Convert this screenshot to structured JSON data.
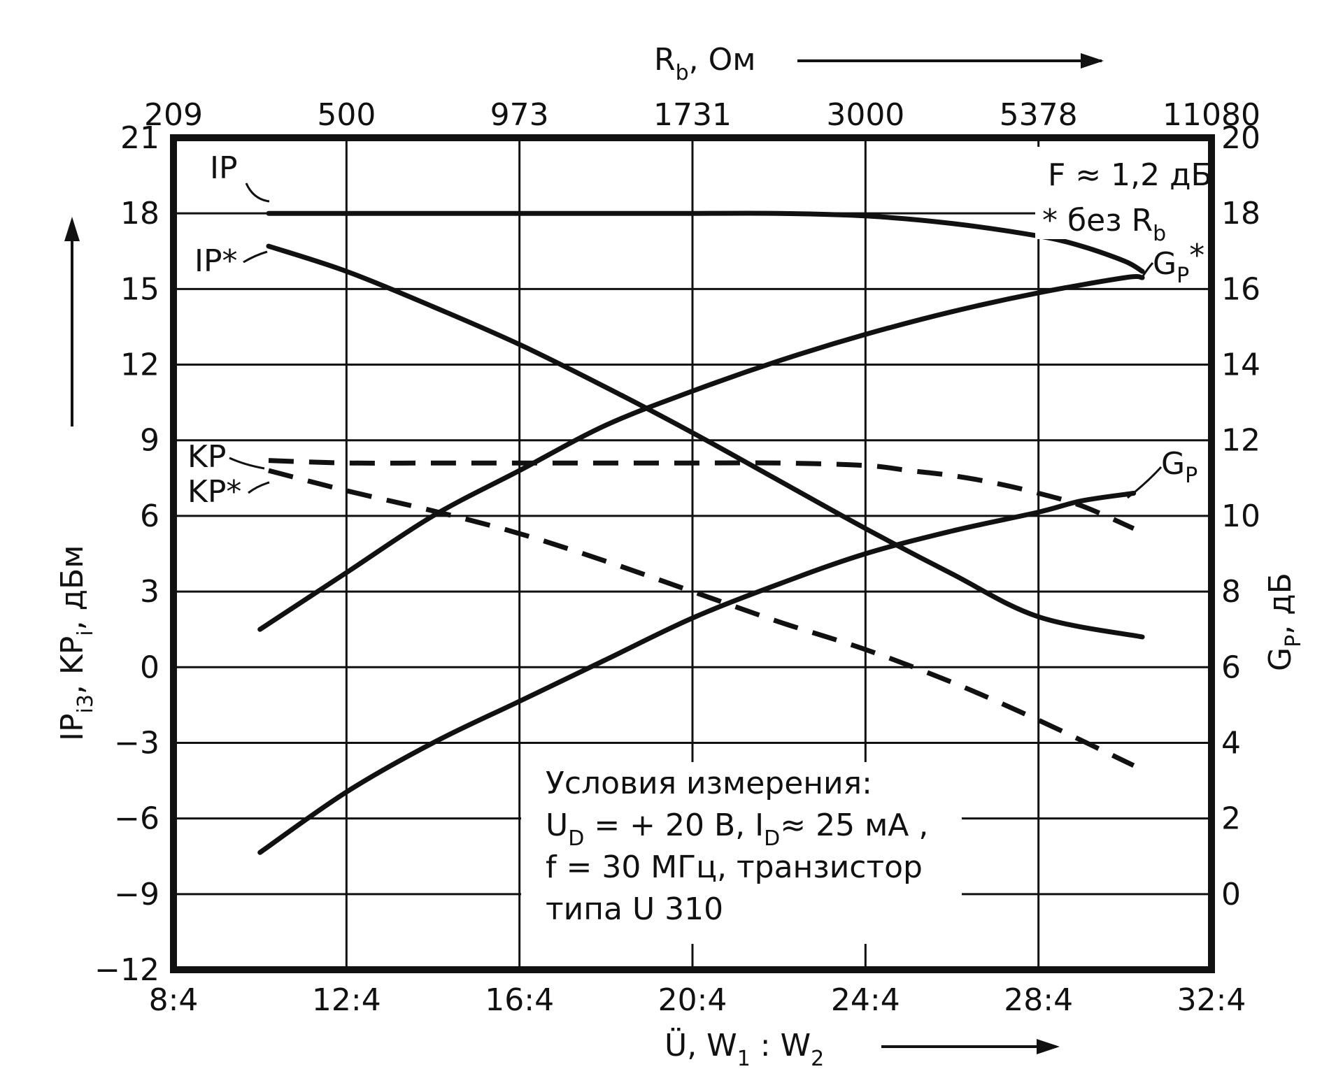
{
  "chart_data": {
    "type": "line",
    "x_axis": {
      "label": "Ü, W",
      "label_sub1": "1",
      "label_mid": " : W",
      "label_sub2": "2",
      "range": [
        8,
        32
      ],
      "ticks": [
        8,
        12,
        16,
        20,
        24,
        28,
        32
      ],
      "tick_labels": [
        "8:4",
        "12:4",
        "16:4",
        "20:4",
        "24:4",
        "28:4",
        "32:4"
      ]
    },
    "top_axis": {
      "label": "R",
      "label_sub": "b",
      "label_rest": ", Ом",
      "tick_labels": [
        "209",
        "500",
        "973",
        "1731",
        "3000",
        "5378",
        "11080"
      ]
    },
    "y_left": {
      "label": "IP",
      "label_sub1": "i3",
      "label_mid": ", KP",
      "label_sub2": "i",
      "label_rest": ", дБм",
      "range": [
        -12,
        21
      ],
      "ticks": [
        21,
        18,
        15,
        12,
        9,
        6,
        3,
        0,
        -3,
        -6,
        -9,
        -12
      ],
      "tick_labels": [
        "21",
        "18",
        "15",
        "12",
        "9",
        "6",
        "3",
        "0",
        "−3",
        "−6",
        "−9",
        "−12"
      ]
    },
    "y_right": {
      "label": "G",
      "label_sub": "P",
      "label_rest": ", дБ",
      "range": [
        -2,
        20
      ],
      "ticks": [
        20,
        18,
        16,
        14,
        12,
        10,
        8,
        6,
        4,
        2,
        0
      ],
      "tick_labels": [
        "20",
        "18",
        "16",
        "14",
        "12",
        "10",
        "8",
        "6",
        "4",
        "2",
        "0"
      ]
    },
    "series": [
      {
        "name": "IP",
        "axis": "left",
        "style": "solid",
        "x": [
          10.2,
          12,
          14,
          16,
          18,
          20,
          22,
          24,
          26,
          28,
          29,
          30,
          30.4
        ],
        "y": [
          18,
          18,
          18,
          18,
          18,
          18,
          18,
          17.9,
          17.6,
          17.1,
          16.7,
          16.1,
          15.7
        ]
      },
      {
        "name": "IP*",
        "axis": "left",
        "style": "solid",
        "x": [
          10.2,
          12,
          14,
          16,
          18,
          20,
          22,
          24,
          26,
          28,
          30.4
        ],
        "y": [
          16.7,
          15.7,
          14.3,
          12.8,
          11.1,
          9.3,
          7.4,
          5.5,
          3.7,
          2.0,
          1.2
        ]
      },
      {
        "name": "G",
        "name_sub": "P",
        "name_sup": "*",
        "axis": "right",
        "style": "solid",
        "x": [
          10,
          12,
          14,
          16,
          18,
          20,
          22,
          24,
          26,
          28,
          30,
          30.4
        ],
        "y": [
          7.0,
          8.5,
          10.0,
          11.2,
          12.4,
          13.3,
          14.1,
          14.8,
          15.4,
          15.9,
          16.3,
          16.3
        ]
      },
      {
        "name": "G",
        "name_sub": "P",
        "axis": "right",
        "style": "solid",
        "x": [
          10,
          12,
          14,
          16,
          18,
          20,
          22,
          24,
          26,
          28,
          29,
          30.2
        ],
        "y": [
          1.1,
          2.7,
          4.0,
          5.1,
          6.2,
          7.3,
          8.2,
          9.0,
          9.6,
          10.1,
          10.4,
          10.6
        ]
      },
      {
        "name": "KP",
        "axis": "left",
        "style": "dashed",
        "x": [
          10.2,
          12,
          14,
          16,
          18,
          20,
          22,
          24,
          25,
          26,
          27,
          28,
          29,
          30.2
        ],
        "y": [
          8.2,
          8.1,
          8.1,
          8.1,
          8.1,
          8.1,
          8.1,
          8.0,
          7.8,
          7.6,
          7.3,
          6.9,
          6.4,
          5.5
        ]
      },
      {
        "name": "KP*",
        "axis": "left",
        "style": "dashed",
        "x": [
          10.2,
          12,
          14,
          16,
          18,
          20,
          22,
          24,
          26,
          28,
          30.2
        ],
        "y": [
          7.8,
          7.0,
          6.2,
          5.3,
          4.2,
          3.0,
          1.8,
          0.7,
          -0.6,
          -2.1,
          -3.9
        ]
      }
    ],
    "labels": {
      "ip": "IP",
      "ip_star": "IP*",
      "kp": "KP",
      "kp_star": "KP*",
      "gp": "G",
      "gp_sub": "P",
      "star": "*"
    },
    "note": {
      "line1a": "F ≈ 1,2 дБ",
      "line2a": "*  без R",
      "line2_sub": "b"
    },
    "conditions": {
      "line1": "Условия измерения:",
      "line2a": "U",
      "line2_sub1": "D",
      "line2b": " = + 20 В,   I",
      "line2_sub2": "D",
      "line2c": "≈ 25 мА ,",
      "line3": "f = 30 МГц,   транзистор",
      "line4": "типа  U 310"
    },
    "grid": true
  }
}
